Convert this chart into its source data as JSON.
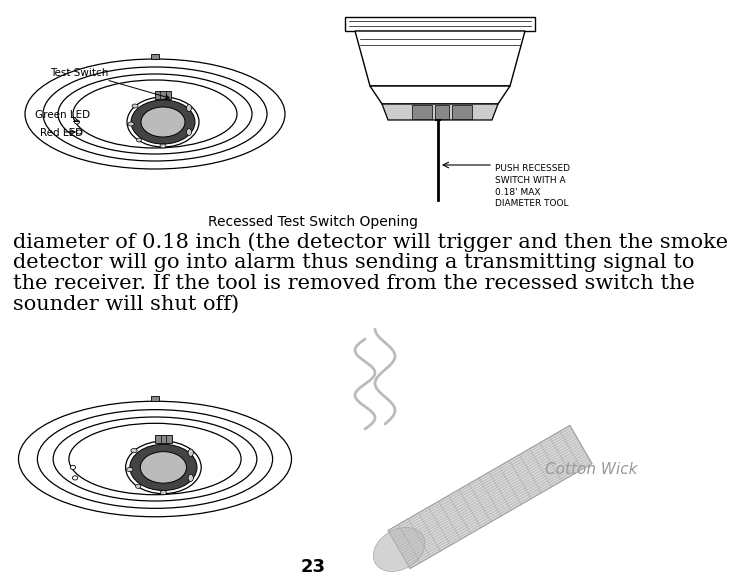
{
  "bg_color": "#ffffff",
  "page_number": "23",
  "caption_center": "Recessed Test Switch Opening",
  "body_text_lines": [
    "diameter of 0.18 inch (the detector will trigger and then the smoke",
    "detector will go into alarm thus sending a transmitting signal to",
    "the receiver. If the tool is removed from the recessed switch the",
    "sounder will shut off)"
  ],
  "label_test_switch": "Test Switch",
  "label_green_led": "Green LED",
  "label_red_led": "Red LED",
  "label_push_recessed": "PUSH RECESSED\nSWITCH WITH A\n0.18' MAX\nDIAMETER TOOL",
  "label_cotton_wick": "Cotton Wick",
  "diagram_line_color": "#000000",
  "body_fontsize": 15,
  "caption_fontsize": 10,
  "label_fontsize": 7.5,
  "push_label_fontsize": 6.5,
  "cotton_fontsize": 11,
  "page_num_fontsize": 13,
  "smoke_color": "#bbbbbb",
  "wick_face_color": "#d8d8d8",
  "wick_edge_color": "#999999",
  "cotton_label_color": "#999999"
}
